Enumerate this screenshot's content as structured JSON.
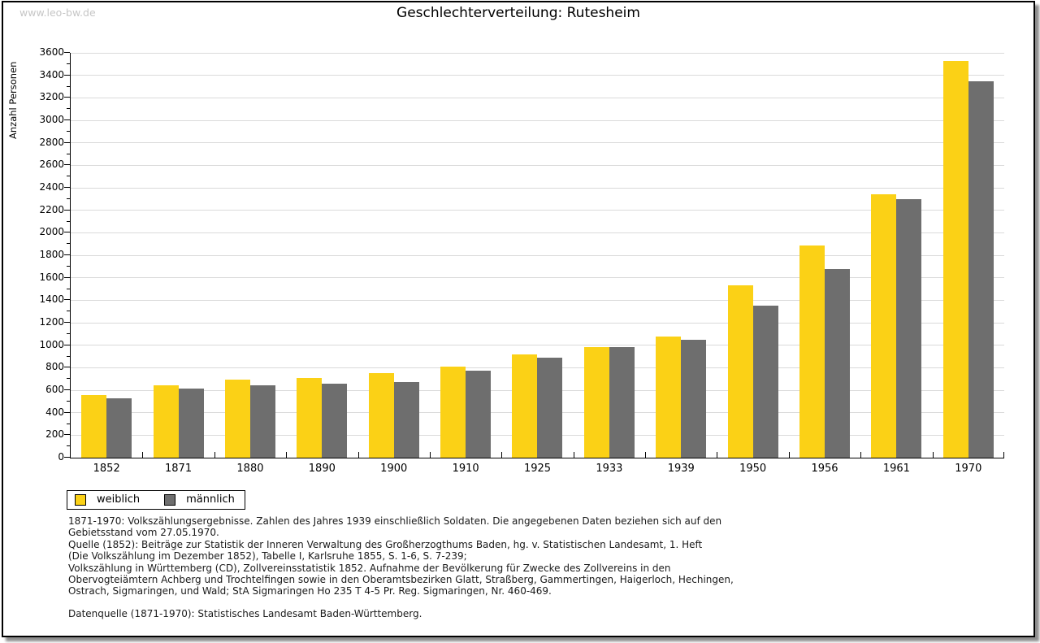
{
  "watermark": "www.leo-bw.de",
  "title": "Geschlechterverteilung: Rutesheim",
  "chart_data": {
    "type": "bar",
    "title": "Geschlechterverteilung: Rutesheim",
    "xlabel": "",
    "ylabel": "Anzahl Personen",
    "ylim": [
      0,
      3600
    ],
    "ytick_step": 200,
    "ytick_minor_step": 100,
    "grid": true,
    "legend_position": "bottom-left",
    "categories": [
      "1852",
      "1871",
      "1880",
      "1890",
      "1900",
      "1910",
      "1925",
      "1933",
      "1939",
      "1950",
      "1956",
      "1961",
      "1970"
    ],
    "series": [
      {
        "name": "weiblich",
        "color": "#fbd116",
        "values": [
          560,
          640,
          695,
          710,
          755,
          810,
          915,
          985,
          1075,
          1530,
          1890,
          2340,
          3530
        ]
      },
      {
        "name": "männlich",
        "color": "#6e6e6e",
        "values": [
          525,
          615,
          645,
          660,
          675,
          770,
          890,
          980,
          1045,
          1350,
          1680,
          2300,
          3350
        ]
      }
    ]
  },
  "footnotes": [
    "1871-1970: Volkszählungsergebnisse. Zahlen des Jahres 1939 einschließlich Soldaten. Die angegebenen Daten beziehen sich auf den",
    "Gebietsstand vom 27.05.1970.",
    "Quelle (1852): Beiträge zur Statistik der Inneren Verwaltung des Großherzogthums Baden, hg. v. Statistischen Landesamt, 1. Heft",
    "(Die Volkszählung im Dezember 1852), Tabelle I, Karlsruhe 1855, S. 1-6, S. 7-239;",
    "Volkszählung in Württemberg (CD), Zollvereinsstatistik 1852. Aufnahme der Bevölkerung für Zwecke des Zollvereins in den",
    "Obervogteiämtern Achberg und Trochtelfingen sowie in den Oberamtsbezirken Glatt, Straßberg, Gammertingen, Haigerloch, Hechingen,",
    "Ostrach, Sigmaringen, und Wald; StA Sigmaringen Ho 235 T 4-5 Pr. Reg. Sigmaringen, Nr. 460-469."
  ],
  "datasource": "Datenquelle (1871-1970): Statistisches Landesamt Baden-Württemberg."
}
